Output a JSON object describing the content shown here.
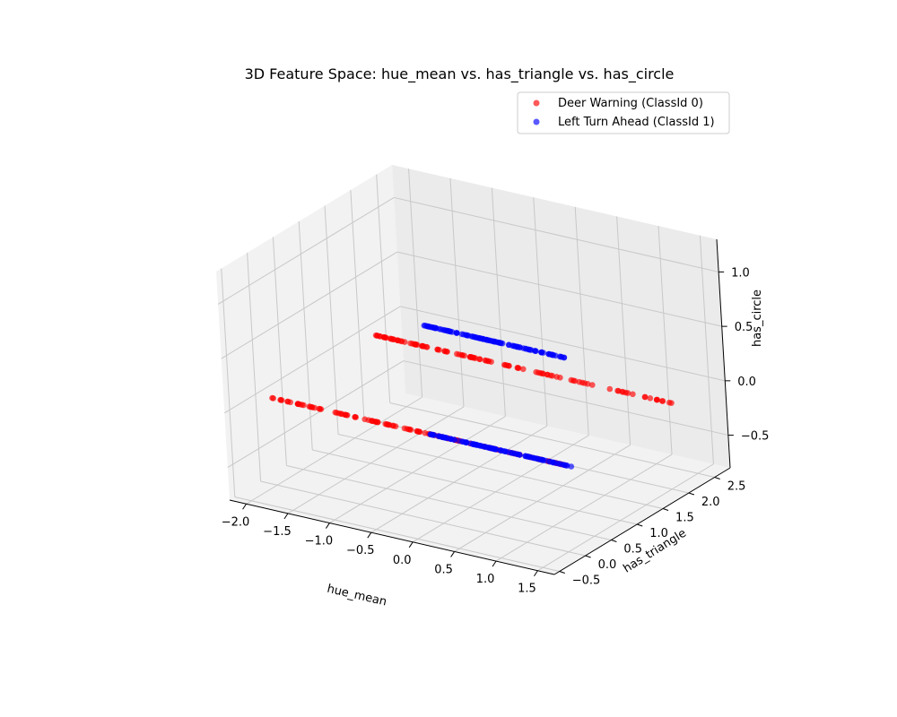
{
  "chart_data": {
    "type": "scatter",
    "title": "3D Feature Space: hue_mean vs. has_triangle vs. has_circle",
    "xlabel": "hue_mean",
    "ylabel": "has_triangle",
    "zlabel": "has_circle",
    "xlim": [
      -2.2,
      1.7
    ],
    "ylim": [
      -0.6,
      2.8
    ],
    "zlim": [
      -0.8,
      1.3
    ],
    "xticks": [
      "−2.0",
      "−1.5",
      "−1.0",
      "−0.5",
      "0.0",
      "0.5",
      "1.0",
      "1.5"
    ],
    "yticks": [
      "−0.5",
      "0.0",
      "0.5",
      "1.0",
      "1.5",
      "2.0",
      "2.5"
    ],
    "zticks": [
      "−0.5",
      "0.0",
      "0.5",
      "1.0"
    ],
    "grid": true,
    "legend_position": "upper right",
    "colors": {
      "class0": "#ff0000",
      "class1": "#0000ff"
    },
    "series": [
      {
        "name": "Deer Warning (ClassId 0)",
        "color": "#ff0000",
        "groups": [
          {
            "y": 0,
            "z": 0,
            "x_range": [
              -2.0,
              1.6
            ]
          },
          {
            "y": 2,
            "z": 0,
            "x_range": [
              -2.0,
              1.6
            ]
          }
        ]
      },
      {
        "name": "Left Turn Ahead (ClassId 1)",
        "color": "#0000ff",
        "groups": [
          {
            "y": 0,
            "z": 0,
            "x_range": [
              -0.1,
              1.6
            ]
          },
          {
            "y": 0,
            "z": 1,
            "x_range": [
              -0.1,
              1.6
            ]
          }
        ]
      }
    ]
  }
}
